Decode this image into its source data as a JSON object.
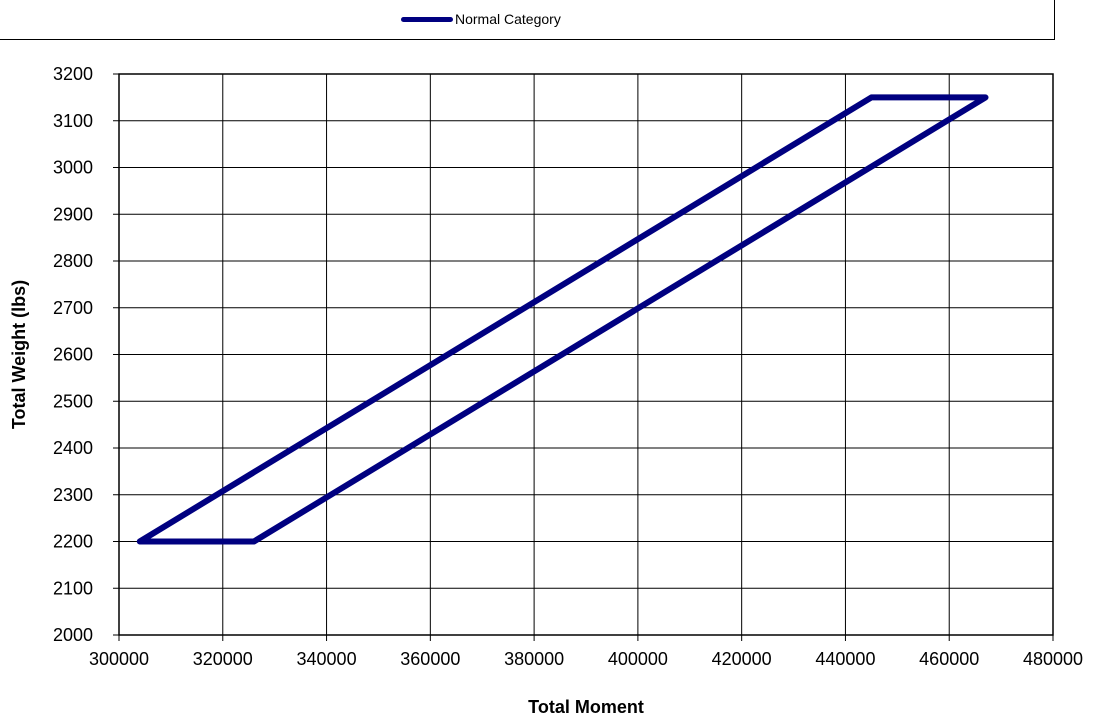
{
  "chart_data": {
    "type": "line",
    "title": "",
    "xlabel": "Total Moment",
    "ylabel": "Total Weight (lbs)",
    "xlim": [
      300000,
      480000
    ],
    "ylim": [
      2000,
      3200
    ],
    "x_ticks": [
      300000,
      320000,
      340000,
      360000,
      380000,
      400000,
      420000,
      440000,
      460000,
      480000
    ],
    "y_ticks": [
      2000,
      2100,
      2200,
      2300,
      2400,
      2500,
      2600,
      2700,
      2800,
      2900,
      3000,
      3100,
      3200
    ],
    "grid": true,
    "legend_position": "top",
    "series": [
      {
        "name": "Normal Category",
        "color": "#000080",
        "points": [
          {
            "x": 304000,
            "y": 2200
          },
          {
            "x": 326000,
            "y": 2200
          },
          {
            "x": 467000,
            "y": 3150
          },
          {
            "x": 445000,
            "y": 3150
          },
          {
            "x": 304000,
            "y": 2200
          }
        ]
      }
    ]
  }
}
